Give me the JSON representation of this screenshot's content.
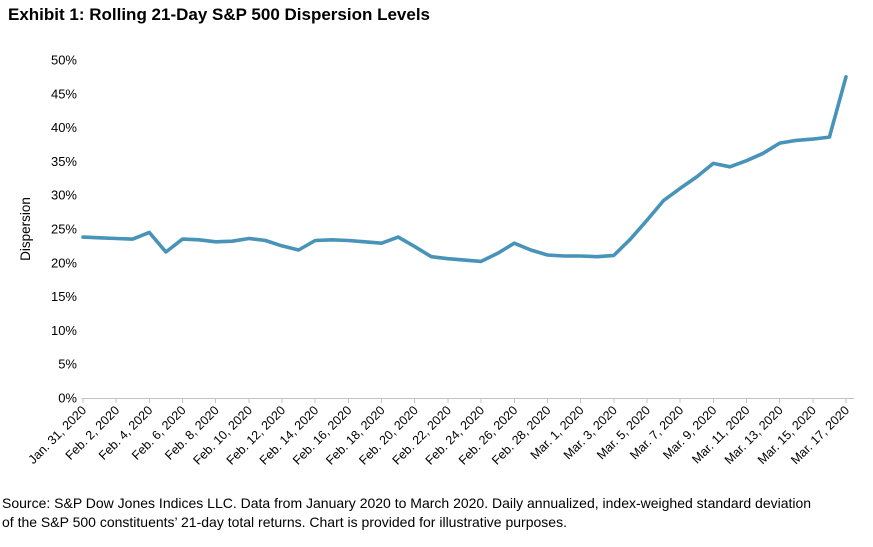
{
  "page": {
    "title": "Exhibit 1: Rolling 21-Day S&P 500 Dispersion Levels",
    "source_note_lines": [
      "Source: S&P Dow Jones Indices LLC. Data from January 2020 to March 2020. Daily annualized, index-weighed standard deviation",
      "of the S&P 500 constituents’ 21-day total returns. Chart is provided for illustrative purposes."
    ]
  },
  "chart_data": {
    "type": "line",
    "title": "Exhibit 1: Rolling 21-Day S&P 500 Dispersion Levels",
    "xlabel": "",
    "ylabel": "Dispersion",
    "ylim": [
      0,
      50
    ],
    "ytick_step": 5,
    "y_tick_labels": [
      "0%",
      "5%",
      "10%",
      "15%",
      "20%",
      "25%",
      "30%",
      "35%",
      "40%",
      "45%",
      "50%"
    ],
    "x_tick_labels": [
      "Jan. 31, 2020",
      "Feb. 2, 2020",
      "Feb. 4, 2020",
      "Feb. 6, 2020",
      "Feb. 8, 2020",
      "Feb. 10, 2020",
      "Feb. 12, 2020",
      "Feb. 14, 2020",
      "Feb. 16, 2020",
      "Feb. 18, 2020",
      "Feb. 20, 2020",
      "Feb. 22, 2020",
      "Feb. 24, 2020",
      "Feb. 26, 2020",
      "Feb. 28, 2020",
      "Mar. 1, 2020",
      "Mar. 3, 2020",
      "Mar. 5, 2020",
      "Mar. 7, 2020",
      "Mar. 9, 2020",
      "Mar. 11, 2020",
      "Mar. 13, 2020",
      "Mar. 15, 2020",
      "Mar. 17, 2020"
    ],
    "x_tick_day_offsets": [
      0,
      2,
      4,
      6,
      8,
      10,
      12,
      14,
      16,
      18,
      20,
      22,
      24,
      26,
      28,
      30,
      32,
      34,
      36,
      38,
      40,
      42,
      44,
      46
    ],
    "grid": false,
    "legend": false,
    "series": [
      {
        "name": "Rolling 21-day S&P 500 dispersion (%)",
        "day_offsets": [
          0,
          1,
          2,
          3,
          4,
          5,
          6,
          7,
          8,
          9,
          10,
          11,
          12,
          13,
          14,
          15,
          16,
          17,
          18,
          19,
          20,
          21,
          22,
          23,
          24,
          25,
          26,
          27,
          28,
          29,
          30,
          31,
          32,
          33,
          34,
          35,
          36,
          37,
          38,
          39,
          40,
          41,
          42,
          43,
          44,
          45,
          46
        ],
        "values": [
          23.8,
          23.7,
          23.6,
          23.5,
          24.5,
          21.6,
          23.5,
          23.4,
          23.1,
          23.2,
          23.6,
          23.3,
          22.5,
          21.9,
          23.3,
          23.4,
          23.3,
          23.1,
          22.9,
          23.8,
          22.4,
          20.9,
          20.6,
          20.4,
          20.2,
          21.4,
          22.9,
          21.9,
          21.15,
          21.0,
          21.0,
          20.9,
          21.1,
          23.5,
          26.3,
          29.2,
          31.0,
          32.7,
          34.7,
          34.2,
          35.1,
          36.2,
          37.7,
          38.1,
          38.3,
          38.6,
          47.5
        ]
      }
    ],
    "line_color": "#4894B8",
    "axis_color": "#C3C3C3",
    "text_color": "#000000"
  }
}
